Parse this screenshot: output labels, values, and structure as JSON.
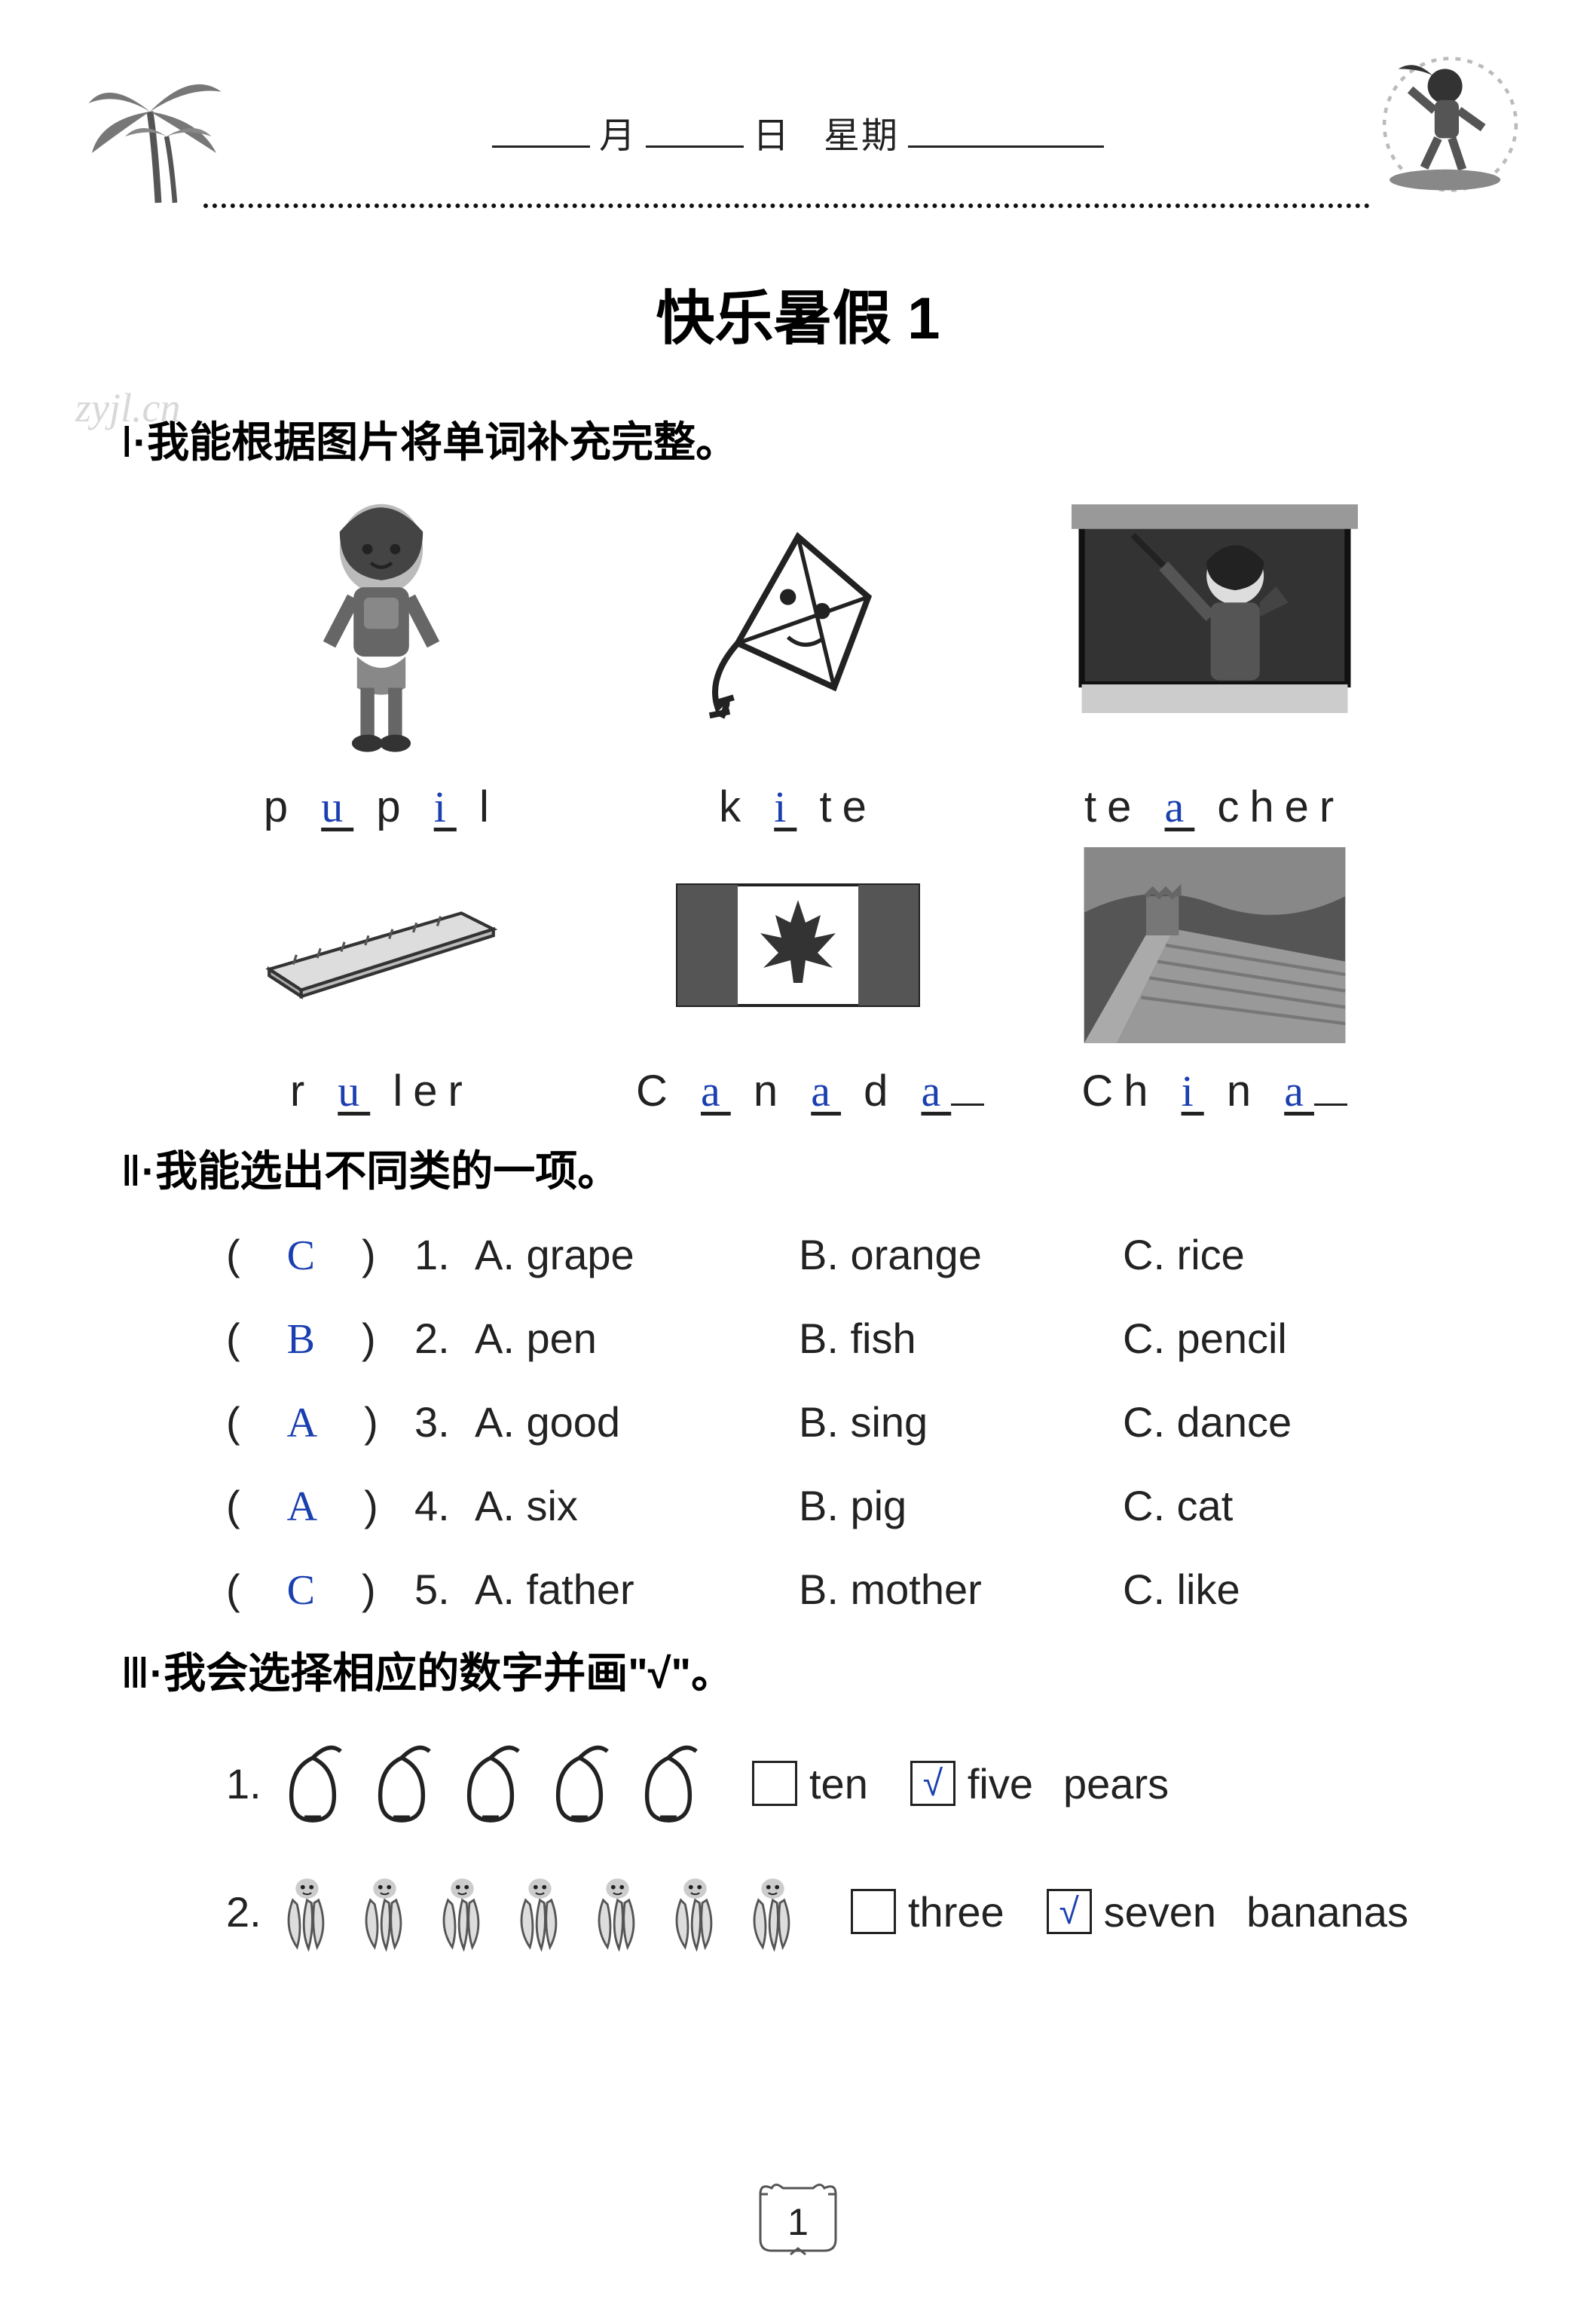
{
  "header": {
    "month_label": "月",
    "day_label": "日",
    "weekday_label": "星期"
  },
  "watermark": "zyjl.cn",
  "title": "快乐暑假 1",
  "section1": {
    "heading_roman": "Ⅰ",
    "heading_text": "·我能根据图片将单词补充完整。",
    "row1": [
      {
        "icon": "girl-pupil",
        "pre": "p ",
        "fill1": "u",
        "mid1": " p ",
        "fill2": "i",
        "post": " l"
      },
      {
        "icon": "kite",
        "pre": "k ",
        "fill1": "i",
        "post": " te"
      },
      {
        "icon": "teacher",
        "pre": "te ",
        "fill1": "a",
        "post": " cher"
      }
    ],
    "row2": [
      {
        "icon": "ruler",
        "pre": "r ",
        "fill1": "u",
        "post": " ler"
      },
      {
        "icon": "canada-flag",
        "pre": "C ",
        "f1": "a",
        "m1": " n ",
        "f2": "a",
        "m2": " d ",
        "f3": "a"
      },
      {
        "icon": "great-wall",
        "pre": "Ch ",
        "f1": "i",
        "m1": " n ",
        "f2": "a"
      }
    ]
  },
  "section2": {
    "heading_roman": "Ⅱ",
    "heading_text": "·我能选出不同类的一项。",
    "items": [
      {
        "ans": "C",
        "num": "1.",
        "a": "A. grape",
        "b": "B. orange",
        "c": "C. rice"
      },
      {
        "ans": "B",
        "num": "2.",
        "a": "A. pen",
        "b": "B. fish",
        "c": "C. pencil"
      },
      {
        "ans": "A",
        "num": "3.",
        "a": "A. good",
        "b": "B. sing",
        "c": "C. dance"
      },
      {
        "ans": "A",
        "num": "4.",
        "a": "A. six",
        "b": "B. pig",
        "c": "C. cat"
      },
      {
        "ans": "C",
        "num": "5.",
        "a": "A. father",
        "b": "B. mother",
        "c": "C. like"
      }
    ]
  },
  "section3": {
    "heading_roman": "Ⅲ",
    "heading_text": "·我会选择相应的数字并画\"√\"。",
    "items": [
      {
        "num": "1.",
        "icon": "pear",
        "count": 5,
        "opt1": "ten",
        "check1": "",
        "opt2": "five",
        "check2": "√",
        "tail": "pears"
      },
      {
        "num": "2.",
        "icon": "banana",
        "count": 7,
        "opt1": "three",
        "check1": "",
        "opt2": "seven",
        "check2": "√",
        "tail": "bananas"
      }
    ]
  },
  "page_number": "1",
  "colors": {
    "answer_blue": "#1a3fb0",
    "text": "#222222",
    "watermark": "#d8d8d8",
    "bg": "#ffffff"
  }
}
